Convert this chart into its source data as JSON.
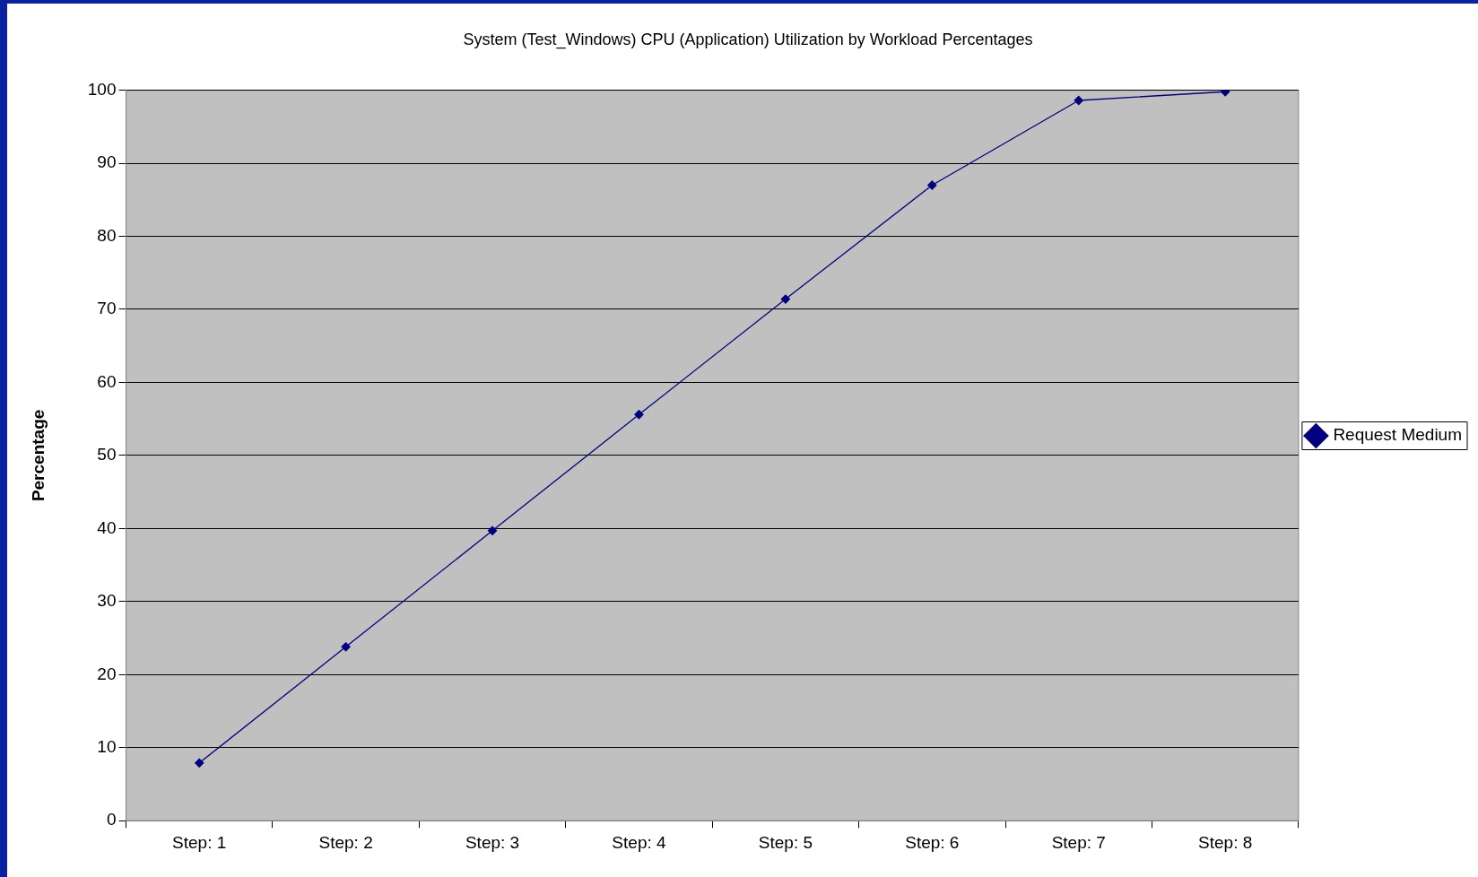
{
  "chart_data": {
    "type": "line",
    "title": "System (Test_Windows) CPU (Application) Utilization by Workload Percentages",
    "ylabel": "Percentage",
    "categories": [
      "Step: 1",
      "Step: 2",
      "Step: 3",
      "Step: 4",
      "Step: 5",
      "Step: 6",
      "Step: 7",
      "Step: 8"
    ],
    "series": [
      {
        "name": "Request Medium",
        "color": "#000080",
        "values": [
          7.9,
          23.8,
          39.7,
          55.6,
          71.4,
          87.0,
          98.6,
          99.8
        ]
      }
    ],
    "ylim": [
      0,
      100
    ],
    "yticks": [
      0,
      10,
      20,
      30,
      40,
      50,
      60,
      70,
      80,
      90,
      100
    ],
    "grid": "y",
    "legend": "right",
    "marker": "diamond",
    "line_style": "solid"
  }
}
